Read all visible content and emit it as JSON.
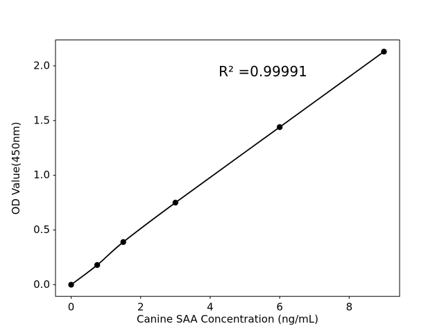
{
  "chart_data": {
    "type": "line",
    "title": "",
    "xlabel": "Canine SAA Concentration (ng/mL)",
    "ylabel": "OD Value(450nm)",
    "annotation": "R² =0.99991",
    "x": [
      0,
      0.75,
      1.5,
      3,
      6,
      9
    ],
    "y": [
      0.0,
      0.18,
      0.39,
      0.75,
      1.44,
      2.13
    ],
    "xticks": [
      0,
      2,
      4,
      6,
      8
    ],
    "yticks": [
      0.0,
      0.5,
      1.0,
      1.5,
      2.0
    ],
    "xlim": [
      -0.45,
      9.45
    ],
    "ylim": [
      -0.1065,
      2.2365
    ],
    "grid": false,
    "legend": null,
    "line_color": "#000000",
    "marker_color": "#000000",
    "background_color": "#ffffff",
    "marker_style": "filled-circle"
  }
}
